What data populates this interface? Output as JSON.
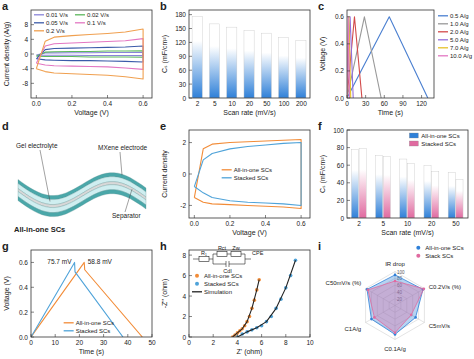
{
  "chart_data": [
    {
      "type": "line",
      "title": "a",
      "x_label": "Voltage (V)",
      "y_label": "Current density (A/g)",
      "x": [
        0,
        0.05,
        0.1,
        0.2,
        0.3,
        0.4,
        0.5,
        0.6,
        0.6,
        0.5,
        0.4,
        0.3,
        0.2,
        0.1,
        0.05,
        0
      ],
      "series": [
        {
          "name": "0.01 V/s",
          "color": "#8a84d8",
          "values": [
            -0.3,
            0.3,
            0.3,
            0.35,
            0.35,
            0.4,
            0.4,
            0.45,
            -0.45,
            -0.4,
            -0.4,
            -0.4,
            -0.35,
            -0.35,
            -0.35,
            -0.3
          ]
        },
        {
          "name": "0.02 V/s",
          "color": "#5cb85c",
          "values": [
            -0.6,
            0.5,
            0.6,
            0.7,
            0.7,
            0.8,
            0.8,
            0.9,
            -0.9,
            -0.8,
            -0.8,
            -0.8,
            -0.7,
            -0.7,
            -0.7,
            -0.6
          ]
        },
        {
          "name": "0.05 V/s",
          "color": "#3b5ba9",
          "values": [
            -1.3,
            1.2,
            1.5,
            1.6,
            1.7,
            1.8,
            1.9,
            2.2,
            -2.2,
            -2.0,
            -1.9,
            -1.8,
            -1.8,
            -1.7,
            -1.6,
            -1.3
          ]
        },
        {
          "name": "0.1 V/s",
          "color": "#e377c2",
          "values": [
            -2.5,
            2.2,
            2.8,
            3.0,
            3.2,
            3.4,
            3.6,
            4.2,
            -4.2,
            -3.8,
            -3.5,
            -3.4,
            -3.3,
            -3.2,
            -3.0,
            -2.5
          ]
        },
        {
          "name": "0.2 V/s",
          "color": "#f0a050",
          "values": [
            -4,
            3.5,
            4.6,
            5.0,
            5.3,
            5.6,
            6.0,
            6.8,
            -6.8,
            -6.2,
            -5.8,
            -5.6,
            -5.4,
            -5.2,
            -4.8,
            -4
          ]
        }
      ],
      "xlim": [
        -0.03,
        0.65
      ],
      "xticks": [
        {
          "value": 0,
          "label": "0.0"
        },
        {
          "value": 0.2,
          "label": "0.2"
        },
        {
          "value": 0.4,
          "label": "0.4"
        },
        {
          "value": 0.6,
          "label": "0.6"
        }
      ],
      "ylim": [
        -12,
        12
      ],
      "yticks": [
        -8,
        -4,
        0,
        4,
        8
      ],
      "legend": "top"
    },
    {
      "type": "bar",
      "title": "b",
      "x_label": "Scan rate (mV/s)",
      "y_label": "Cₛ (mF/cm²)",
      "categories": [
        "2",
        "5",
        "10",
        "20",
        "50",
        "100",
        "200"
      ],
      "values": [
        176,
        160,
        153,
        146,
        140,
        131,
        124
      ],
      "color": "#2f80d8",
      "ylim": [
        0,
        190
      ],
      "yticks": [
        0,
        30,
        60,
        90,
        120,
        150,
        180
      ]
    },
    {
      "type": "line",
      "title": "c",
      "x_label": "Time (s)",
      "y_label": "Voltage (V)",
      "series": [
        {
          "name": "0.5 A/g",
          "color": "#4a7fd0",
          "x": [
            0,
            68,
            130
          ],
          "values": [
            0,
            0.6,
            0
          ]
        },
        {
          "name": "1.0 A/g",
          "color": "#999999",
          "x": [
            0,
            28,
            55
          ],
          "values": [
            0,
            0.6,
            0
          ]
        },
        {
          "name": "2.0 A/g",
          "color": "#d24a4a",
          "x": [
            0,
            12,
            24
          ],
          "values": [
            0,
            0.6,
            0
          ]
        },
        {
          "name": "5.0 A/g",
          "color": "#9370db",
          "x": [
            0,
            5,
            10
          ],
          "values": [
            0,
            0.6,
            0
          ]
        },
        {
          "name": "7.0 A/g",
          "color": "#e6c229",
          "x": [
            0,
            3,
            6
          ],
          "values": [
            0,
            0.6,
            0
          ]
        },
        {
          "name": "10.0 A/g",
          "color": "#e377c2",
          "x": [
            0,
            2,
            4
          ],
          "values": [
            0,
            0.6,
            0
          ]
        }
      ],
      "xlim": [
        0,
        140
      ],
      "xticks": [
        0,
        30,
        60,
        90,
        120
      ],
      "ylim": [
        0,
        0.65
      ],
      "yticks": [
        {
          "value": 0,
          "label": "0.0"
        },
        {
          "value": 0.2,
          "label": "0.2"
        },
        {
          "value": 0.4,
          "label": "0.4"
        },
        {
          "value": 0.6,
          "label": "0.6"
        }
      ],
      "legend": "right"
    },
    {
      "type": "diagram",
      "title": "d",
      "labels": [
        "Gel electrolyte",
        "MXene electrode",
        "Separator"
      ],
      "caption": "All-in-one SCs"
    },
    {
      "type": "line",
      "title": "e",
      "x_label": "Voltage (V)",
      "y_label": "Current density",
      "x": [
        0,
        0.05,
        0.1,
        0.2,
        0.3,
        0.4,
        0.5,
        0.6,
        0.6,
        0.5,
        0.4,
        0.3,
        0.2,
        0.1,
        0.05,
        0
      ],
      "series": [
        {
          "name": "All-in-one SCs",
          "color": "#f28c38",
          "values": [
            -1.5,
            1.6,
            1.9,
            2.0,
            2.05,
            2.1,
            2.15,
            2.2,
            -2.2,
            -2.1,
            -2.05,
            -2.0,
            -1.95,
            -1.9,
            -1.8,
            -1.5
          ]
        },
        {
          "name": "Stacked SCs",
          "color": "#4fa3d9",
          "values": [
            -0.8,
            0.9,
            1.3,
            1.6,
            1.75,
            1.85,
            1.95,
            2.0,
            -2.0,
            -1.9,
            -1.85,
            -1.8,
            -1.7,
            -1.5,
            -1.2,
            -0.8
          ]
        }
      ],
      "xlim": [
        -0.03,
        0.65
      ],
      "xticks": [
        {
          "value": 0,
          "label": "0.0"
        },
        {
          "value": 0.2,
          "label": "0.2"
        },
        {
          "value": 0.4,
          "label": "0.4"
        },
        {
          "value": 0.6,
          "label": "0.6"
        }
      ],
      "ylim": [
        -2.8,
        2.8
      ],
      "yticks": [
        -2,
        0,
        2
      ],
      "legend": "center"
    },
    {
      "type": "bar",
      "title": "f",
      "x_label": "Scan rate (mV/s)",
      "y_label": "Cₛ (mF/cm²)",
      "categories": [
        "2",
        "5",
        "10",
        "20",
        "50"
      ],
      "series": [
        {
          "name": "All-in-one SCs",
          "color": "#2f80d8",
          "values": [
            78,
            71,
            67,
            60,
            52
          ]
        },
        {
          "name": "Stacked SCs",
          "color": "#e06aa0",
          "values": [
            79,
            70,
            62,
            53,
            44
          ]
        }
      ],
      "ylim": [
        0,
        100
      ],
      "yticks": [
        0,
        20,
        40,
        60,
        80,
        100
      ],
      "legend": "upper right"
    },
    {
      "type": "line",
      "title": "g",
      "x_label": "Time (s)",
      "y_label": "Voltage (V)",
      "series": [
        {
          "name": "All-in-one SCs",
          "color": "#f28c38",
          "x": [
            0,
            22,
            22.2,
            46
          ],
          "values": [
            0,
            0.6,
            0.541,
            0
          ]
        },
        {
          "name": "Stacked SCs",
          "color": "#4fa3d9",
          "x": [
            0,
            18,
            18.2,
            38
          ],
          "values": [
            0,
            0.6,
            0.524,
            0
          ]
        }
      ],
      "annotations": [
        "75.7 mV",
        "58.8 mV"
      ],
      "xlim": [
        0,
        50
      ],
      "xticks": [
        0,
        10,
        20,
        30,
        40,
        50
      ],
      "ylim": [
        0,
        0.7
      ],
      "yticks": [
        {
          "value": 0,
          "label": "0.0"
        },
        {
          "value": 0.2,
          "label": "0.2"
        },
        {
          "value": 0.4,
          "label": "0.4"
        },
        {
          "value": 0.6,
          "label": "0.6"
        }
      ],
      "legend": "lower center"
    },
    {
      "type": "scatter",
      "title": "h",
      "x_label": "Z' (ohm)",
      "y_label": "-Z'' (ohm)",
      "series": [
        {
          "name": "All-in-one SCs",
          "color": "#f28c38",
          "marker": "circle",
          "x": [
            3.6,
            3.8,
            4.0,
            4.2,
            4.4,
            4.6,
            4.8,
            5.0,
            5.2,
            5.4,
            5.6,
            5.8
          ],
          "values": [
            0,
            0.2,
            0.4,
            0.6,
            0.8,
            1.1,
            1.5,
            2.0,
            2.8,
            3.6,
            4.6,
            5.6
          ]
        },
        {
          "name": "Stacked SCs",
          "color": "#4fa3d9",
          "marker": "circle",
          "x": [
            4.0,
            4.4,
            4.8,
            5.2,
            5.6,
            6.0,
            6.4,
            6.8,
            7.2,
            7.6,
            8.0,
            8.4,
            8.8
          ],
          "values": [
            0,
            0.3,
            0.5,
            0.7,
            0.9,
            1.1,
            1.5,
            2.0,
            2.8,
            3.7,
            4.8,
            6.0,
            7.5
          ]
        },
        {
          "name": "Simulation",
          "type": "line",
          "color": "#222222",
          "x": [
            3.6,
            4.0,
            4.4,
            4.8,
            5.2,
            5.6,
            5.8,
            null,
            4.0,
            4.8,
            5.6,
            6.4,
            7.2,
            8.0,
            8.8
          ],
          "values": [
            0,
            0.4,
            0.8,
            1.5,
            2.8,
            4.6,
            5.6,
            null,
            0,
            0.5,
            0.9,
            1.5,
            2.8,
            4.8,
            7.5
          ]
        }
      ],
      "circuit_labels": [
        "R₁",
        "Rct",
        "CPE",
        "Cdl",
        "Zw"
      ],
      "xlim": [
        0,
        10
      ],
      "xticks": [
        0,
        2,
        4,
        6,
        8,
        10
      ],
      "ylim": [
        0,
        8.5
      ],
      "yticks": [
        0,
        2,
        4,
        6,
        8
      ],
      "legend": "upper left"
    },
    {
      "type": "radar",
      "title": "i",
      "axes": [
        "IR drop",
        "C0.2V/s (%)",
        "C5mV/s",
        "C0.1A/g",
        "C1A/g",
        "C50mV/s (%)"
      ],
      "series": [
        {
          "name": "All-in-one SCs",
          "color": "#2f80d8",
          "values": [
            90,
            95,
            70,
            85,
            80,
            95
          ]
        },
        {
          "name": "Stack SCs",
          "color": "#e06aa0",
          "values": [
            72,
            98,
            55,
            80,
            70,
            92
          ]
        }
      ],
      "rlim": [
        0,
        100
      ],
      "rticks": [
        20,
        40,
        60,
        80,
        100
      ],
      "legend": "upper right"
    }
  ]
}
